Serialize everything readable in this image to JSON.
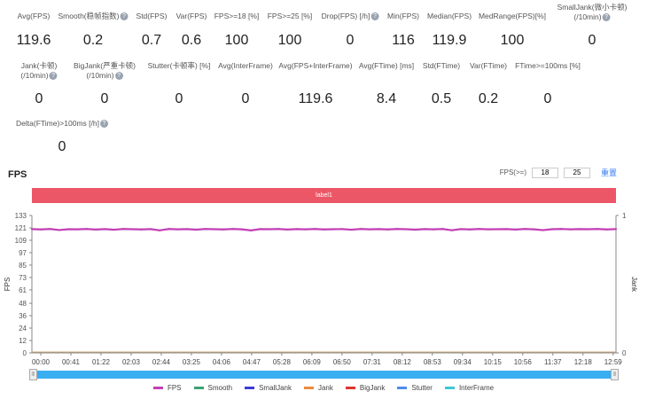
{
  "metrics_row1": [
    {
      "label": "Avg(FPS)",
      "value": "119.6",
      "help": false
    },
    {
      "label": "Smooth(稳帧指数)",
      "value": "0.2",
      "help": true
    },
    {
      "label": "Std(FPS)",
      "value": "0.7",
      "help": false
    },
    {
      "label": "Var(FPS)",
      "value": "0.6",
      "help": false
    },
    {
      "label": "FPS>=18 [%]",
      "value": "100",
      "help": false
    },
    {
      "label": "FPS>=25 [%]",
      "value": "100",
      "help": false
    },
    {
      "label": "Drop(FPS) [/h]",
      "value": "0",
      "help": true
    },
    {
      "label": "Min(FPS)",
      "value": "116",
      "help": false
    },
    {
      "label": "Median(FPS)",
      "value": "119.9",
      "help": false
    },
    {
      "label": "MedRange(FPS)[%]",
      "value": "100",
      "help": false
    },
    {
      "label": "SmallJank(微小卡顿)",
      "label2": "(/10min)",
      "value": "0",
      "help": true
    }
  ],
  "metrics_row2": [
    {
      "label": "Jank(卡顿)",
      "label2": "(/10min)",
      "value": "0",
      "help": true
    },
    {
      "label": "BigJank(严重卡顿)",
      "label2": "(/10min)",
      "value": "0",
      "help": true
    },
    {
      "label": "Stutter(卡顿率) [%]",
      "value": "0",
      "help": false
    },
    {
      "label": "Avg(InterFrame)",
      "value": "0",
      "help": false
    },
    {
      "label": "Avg(FPS+InterFrame)",
      "value": "119.6",
      "help": false
    },
    {
      "label": "Avg(FTime) [ms]",
      "value": "8.4",
      "help": false
    },
    {
      "label": "Std(FTime)",
      "value": "0.5",
      "help": false
    },
    {
      "label": "Var(FTime)",
      "value": "0.2",
      "help": false
    },
    {
      "label": "FTime>=100ms [%]",
      "value": "0",
      "help": false
    }
  ],
  "metrics_row3": [
    {
      "label": "Delta(FTime)>100ms [/h]",
      "value": "0",
      "help": true
    }
  ],
  "section_title": "FPS",
  "fps_filter": {
    "label": "FPS(>=)",
    "value1": "18",
    "value2": "25",
    "reset_label": "重置"
  },
  "label_bar": "label1",
  "chart_data": {
    "type": "line",
    "ylabel": "FPS",
    "y2label": "Jank",
    "ylim": [
      0,
      133
    ],
    "y2lim": [
      0,
      1
    ],
    "yticks": [
      "0",
      "12",
      "24",
      "36",
      "48",
      "61",
      "73",
      "85",
      "97",
      "109",
      "121",
      "133"
    ],
    "y2ticks": [
      "0",
      "1"
    ],
    "xticks": [
      "00:00",
      "00:41",
      "01:22",
      "02:03",
      "02:44",
      "03:25",
      "04:06",
      "04:47",
      "05:28",
      "06:09",
      "06:50",
      "07:31",
      "08:12",
      "08:53",
      "09:34",
      "10:15",
      "10:56",
      "11:37",
      "12:18",
      "12:59"
    ],
    "series": [
      {
        "name": "FPS",
        "color": "#c23fb4",
        "values": [
          119.8,
          119.5,
          119.9,
          118.9,
          119.7,
          119.6,
          119.9,
          119.4,
          119.8,
          119.2,
          119.9,
          119.7,
          119.5,
          119.8,
          118.6,
          119.9,
          119.6,
          119.8,
          119.3,
          119.9,
          119.7,
          119.5,
          119.9,
          119.6,
          118.5,
          119.8,
          119.7,
          119.9,
          119.4,
          119.8,
          119.6,
          119.9,
          119.5,
          119.7,
          119.8,
          119.2,
          119.9,
          119.6,
          119.8,
          119.5,
          119.9,
          119.7,
          119.3,
          119.8,
          119.6,
          119.9,
          118.7,
          119.8,
          119.5,
          119.9,
          119.6,
          119.7,
          119.8,
          119.4,
          119.9,
          119.6,
          118.8,
          119.7,
          119.9,
          119.6,
          119.8,
          119.7,
          119.9,
          119.5,
          119.8
        ]
      },
      {
        "name": "Smooth",
        "color": "#3ba272",
        "values": [
          0
        ]
      },
      {
        "name": "SmallJank",
        "color": "#3b3bd6",
        "values": [
          0
        ]
      },
      {
        "name": "Jank",
        "color": "#f08a3c",
        "values": [
          0
        ]
      },
      {
        "name": "BigJank",
        "color": "#e0342f",
        "values": [
          0
        ]
      },
      {
        "name": "Stutter",
        "color": "#4d8cf0",
        "values": [
          0
        ]
      },
      {
        "name": "InterFrame",
        "color": "#3cc8d8",
        "values": [
          0
        ]
      }
    ]
  }
}
